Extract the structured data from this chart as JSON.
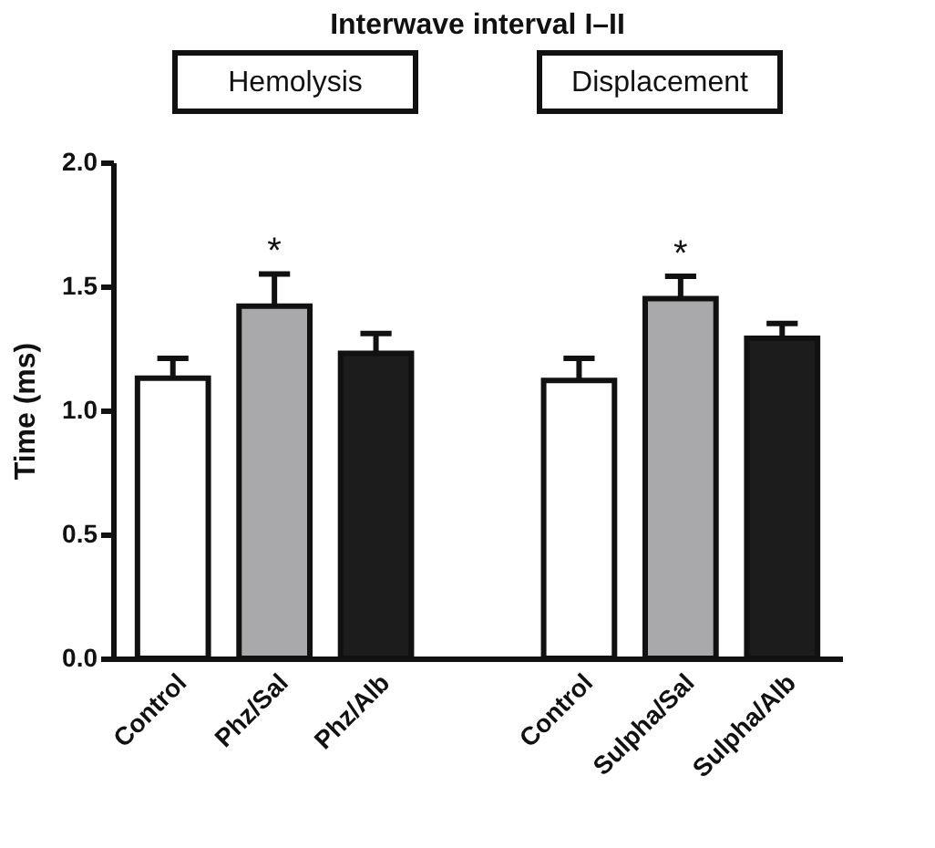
{
  "chart_data": {
    "type": "bar",
    "title": "Interwave interval I–II",
    "ylabel": "Time (ms)",
    "categories": [
      "Control",
      "Phz/Sal",
      "Phz/Alb",
      null,
      "Control",
      "Sulpha/Sal",
      "Sulpha/Alb"
    ],
    "values": [
      1.13,
      1.42,
      1.23,
      null,
      1.12,
      1.45,
      1.29
    ],
    "colors": [
      "#ffffff",
      "#a9a9ac",
      "#1c1c1c",
      null,
      "#ffffff",
      "#a9a9ac",
      "#1c1c1c"
    ],
    "errors": [
      [
        1.13,
        1.21
      ],
      [
        1.42,
        1.55
      ],
      [
        1.23,
        1.31
      ],
      null,
      [
        1.12,
        1.21
      ],
      [
        1.45,
        1.54
      ],
      [
        1.29,
        1.35
      ]
    ],
    "ylim": [
      0,
      2
    ],
    "yticks": [
      {
        "value": 0,
        "label": "0.0"
      },
      {
        "value": 0.5,
        "label": "0.5"
      },
      {
        "value": 1,
        "label": "1.0"
      },
      {
        "value": 1.5,
        "label": "1.5"
      },
      {
        "value": 2,
        "label": "2.0"
      }
    ],
    "grid": false,
    "annotations": [
      "Hemolysis",
      "Displacement",
      {
        "text": "*",
        "x": "Phz/Sal",
        "y": 1.55
      },
      {
        "text": "*",
        "x": "Sulpha/Sal",
        "y": 1.54
      }
    ]
  }
}
